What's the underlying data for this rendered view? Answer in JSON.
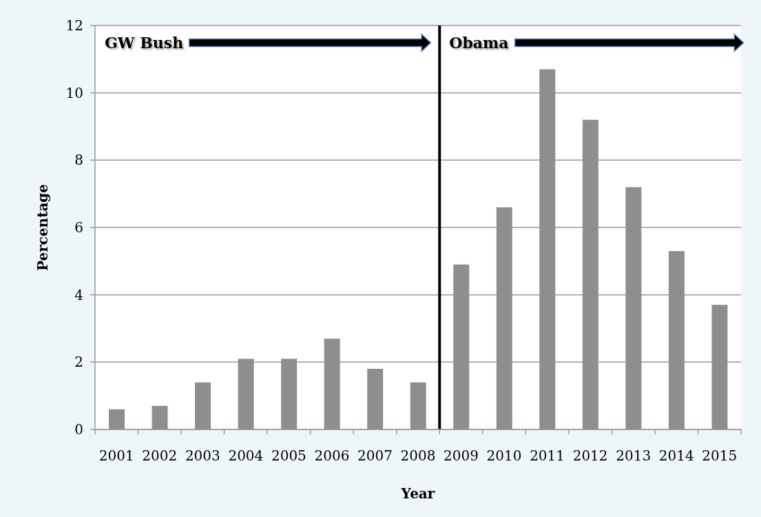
{
  "chart_data": {
    "type": "bar",
    "xlabel": "Year",
    "ylabel": "Percentage",
    "x": [
      2001,
      2002,
      2003,
      2004,
      2005,
      2006,
      2007,
      2008,
      2009,
      2010,
      2011,
      2012,
      2013,
      2014,
      2015
    ],
    "values": [
      0.6,
      0.7,
      1.4,
      2.1,
      2.1,
      2.7,
      1.8,
      1.4,
      4.9,
      6.6,
      10.7,
      9.2,
      7.2,
      5.3,
      3.7
    ],
    "color": "#8e8e8e",
    "xlim": [
      2000.5,
      2015.5
    ],
    "xticks": [
      {
        "value": 2000.5,
        "label": null
      },
      2001,
      {
        "value": 2001.5,
        "label": null
      },
      2002,
      {
        "value": 2002.5,
        "label": null
      },
      2003,
      {
        "value": 2003.5,
        "label": null
      },
      2004,
      {
        "value": 2004.5,
        "label": null
      },
      2005,
      {
        "value": 2005.5,
        "label": null
      },
      2006,
      {
        "value": 2006.5,
        "label": null
      },
      2007,
      {
        "value": 2007.5,
        "label": null
      },
      2008,
      {
        "value": 2008.5,
        "label": null
      },
      2009,
      {
        "value": 2009.5,
        "label": null
      },
      2010,
      {
        "value": 2010.5,
        "label": null
      },
      2011,
      {
        "value": 2011.5,
        "label": null
      },
      2012,
      {
        "value": 2012.5,
        "label": null
      },
      2013,
      {
        "value": 2013.5,
        "label": null
      },
      2014,
      {
        "value": 2014.5,
        "label": null
      },
      2015,
      {
        "value": 2015.5,
        "label": null
      }
    ],
    "ylim": [
      0,
      12
    ],
    "yticks": [
      0,
      2,
      4,
      6,
      8,
      10,
      12
    ],
    "grid": "y",
    "ref_lines": [
      {
        "axis": "x",
        "value": 2008.5,
        "color": "#000000"
      }
    ],
    "annotations": [
      "GW Bush",
      "Obama"
    ]
  }
}
